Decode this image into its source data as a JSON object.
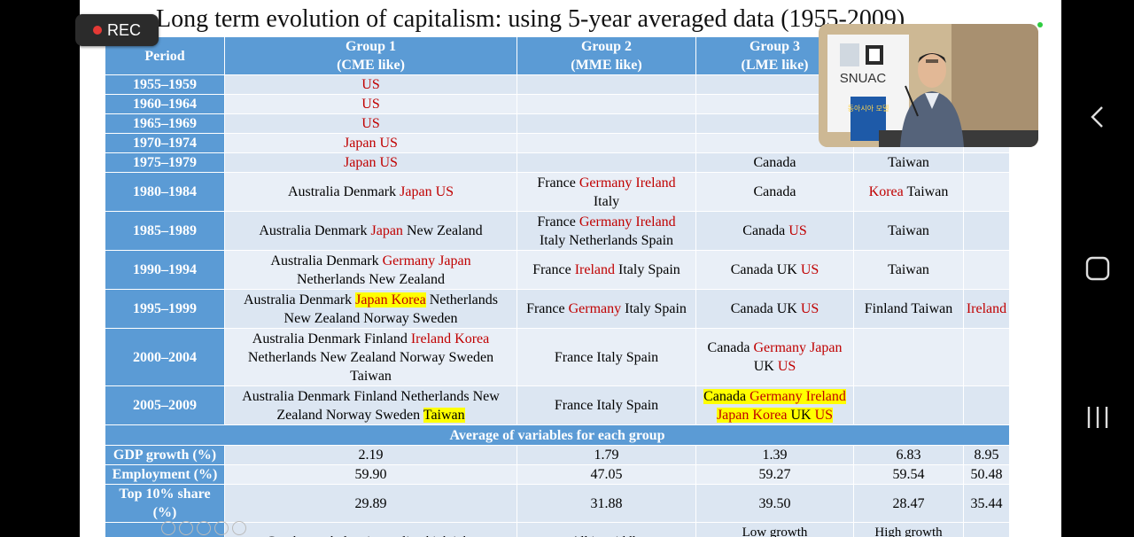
{
  "recording": {
    "label": "REC"
  },
  "slide": {
    "title": "Long term evolution of capitalism: using 5-year averaged data (1955-2009)",
    "headers": {
      "period": "Period",
      "g1": [
        "Group 1",
        "(CME like)"
      ],
      "g2": [
        "Group 2",
        "(MME like)"
      ],
      "g3": [
        "Group 3",
        "(LME like)"
      ]
    },
    "rows": [
      {
        "period": "1955–1959",
        "cells": [
          [
            [
              "US",
              "r"
            ]
          ],
          [],
          [],
          [],
          []
        ]
      },
      {
        "period": "1960–1964",
        "cells": [
          [
            [
              "US",
              "r"
            ]
          ],
          [],
          [],
          [],
          []
        ]
      },
      {
        "period": "1965–1969",
        "cells": [
          [
            [
              "US",
              "r"
            ]
          ],
          [],
          [],
          [],
          []
        ]
      },
      {
        "period": "1970–1974",
        "cells": [
          [
            [
              "Japan US",
              "r"
            ]
          ],
          [],
          [],
          [],
          []
        ]
      },
      {
        "period": "1975–1979",
        "cells": [
          [
            [
              "Japan US",
              "r"
            ]
          ],
          [],
          [
            [
              "Canada",
              "k"
            ]
          ],
          [
            [
              "Taiwan",
              "k"
            ]
          ],
          []
        ]
      },
      {
        "period": "1980–1984",
        "cells": [
          [
            [
              "Australia Denmark ",
              "k"
            ],
            [
              "Japan US",
              "r"
            ]
          ],
          [
            [
              "France ",
              "k"
            ],
            [
              "Germany Ireland",
              "r"
            ],
            [
              "\nItaly",
              "k"
            ]
          ],
          [
            [
              "Canada",
              "k"
            ]
          ],
          [
            [
              "Korea",
              "r"
            ],
            [
              " Taiwan",
              "k"
            ]
          ],
          []
        ]
      },
      {
        "period": "1985–1989",
        "cells": [
          [
            [
              "Australia Denmark ",
              "k"
            ],
            [
              "Japan",
              "r"
            ],
            [
              " New Zealand",
              "k"
            ]
          ],
          [
            [
              "France ",
              "k"
            ],
            [
              "Germany Ireland",
              "r"
            ],
            [
              "\nItaly Netherlands Spain",
              "k"
            ]
          ],
          [
            [
              "Canada ",
              "k"
            ],
            [
              "US",
              "r"
            ]
          ],
          [
            [
              "Taiwan",
              "k"
            ]
          ],
          []
        ]
      },
      {
        "period": "1990–1994",
        "cells": [
          [
            [
              "Australia Denmark ",
              "k"
            ],
            [
              "Germany Japan",
              "r"
            ],
            [
              "\nNetherlands New Zealand",
              "k"
            ]
          ],
          [
            [
              "France ",
              "k"
            ],
            [
              "Ireland",
              "r"
            ],
            [
              " Italy Spain",
              "k"
            ]
          ],
          [
            [
              "Canada UK ",
              "k"
            ],
            [
              "US",
              "r"
            ]
          ],
          [
            [
              "Taiwan",
              "k"
            ]
          ],
          []
        ]
      },
      {
        "period": "1995–1999",
        "cells": [
          [
            [
              "Australia Denmark ",
              "k"
            ],
            [
              "Japan Korea",
              "rh"
            ],
            [
              " Netherlands\nNew Zealand Norway Sweden",
              "k"
            ]
          ],
          [
            [
              "France ",
              "k"
            ],
            [
              "Germany",
              "r"
            ],
            [
              " Italy Spain",
              "k"
            ]
          ],
          [
            [
              "Canada UK ",
              "k"
            ],
            [
              "US",
              "r"
            ]
          ],
          [
            [
              "Finland Taiwan",
              "k"
            ]
          ],
          [
            [
              "Ireland",
              "r"
            ]
          ]
        ]
      },
      {
        "period": "2000–2004",
        "cells": [
          [
            [
              "Australia Denmark Finland ",
              "k"
            ],
            [
              "Ireland Korea",
              "r"
            ],
            [
              "\nNetherlands New Zealand Norway Sweden\nTaiwan",
              "k"
            ]
          ],
          [
            [
              "France Italy Spain",
              "k"
            ]
          ],
          [
            [
              "Canada ",
              "k"
            ],
            [
              "Germany Japan",
              "r"
            ],
            [
              "\nUK ",
              "k"
            ],
            [
              "US",
              "r"
            ]
          ],
          [],
          []
        ]
      },
      {
        "period": "2005–2009",
        "cells": [
          [
            [
              "Australia Denmark Finland Netherlands New\nZealand Norway Sweden ",
              "k"
            ],
            [
              "Taiwan",
              "kh"
            ]
          ],
          [
            [
              "France Italy Spain",
              "k"
            ]
          ],
          [
            [
              "Canada ",
              "kh"
            ],
            [
              "Germany Ireland",
              "rh"
            ],
            [
              "\n",
              "k"
            ],
            [
              "Japan Korea",
              "rh"
            ],
            [
              " UK ",
              "kh"
            ],
            [
              "US",
              "rh"
            ]
          ],
          [],
          []
        ]
      }
    ],
    "averages_header": "Average of variables for each group",
    "variables": [
      {
        "label": "GDP growth (%)",
        "values": [
          "2.19",
          "1.79",
          "1.39",
          "6.83",
          "8.95"
        ]
      },
      {
        "label": "Employment (%)",
        "values": [
          "59.90",
          "47.05",
          "59.27",
          "59.54",
          "50.48"
        ]
      },
      {
        "label": "Top 10% share (%)",
        "values": [
          "29.89",
          "31.88",
          "39.50",
          "28.47",
          "35.44"
        ]
      }
    ],
    "summary": [
      "Good growth, low inequality, high jobs",
      "All in middle",
      "Low growth\n/High Inequality",
      "High growth\nLow Inequality",
      ""
    ]
  },
  "video_overlay": {
    "logo_text": "SNUAC",
    "banner_text": "동아시아 모델"
  },
  "colors": {
    "header_blue": "#5b9bd5",
    "row_light": "#dce6f2",
    "row_lighter": "#e9eff7",
    "red": "#c00000",
    "highlight": "#ffff00"
  }
}
